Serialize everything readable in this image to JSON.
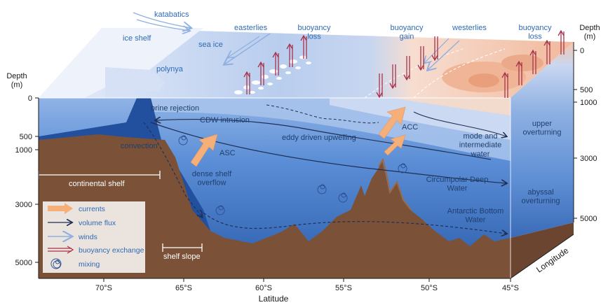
{
  "atmosphere": {
    "katabatics": "katabatics",
    "ice_shelf": "ice shelf",
    "sea_ice": "sea ice",
    "easterlies": "easterlies",
    "buoyancy_loss_1": "buoyancy\nloss",
    "buoyancy_gain": "buoyancy\ngain",
    "westerlies": "westerlies",
    "buoyancy_loss_2": "buoyancy\nloss"
  },
  "ocean": {
    "polynya": "polynya",
    "brine_rejection": "brine rejection",
    "cdw_intrusion": "CDW intrusion",
    "convection": "convection",
    "asc": "ASC",
    "eddy_upwelling": "eddy driven upwelling",
    "acc": "ACC",
    "dense_shelf_overflow": "dense shelf\noverflow",
    "continental_shelf": "continental shelf",
    "shelf_slope": "shelf slope",
    "cdw": "Circumpolar Deep\nWater",
    "aabw": "Antarctic Bottom\nWater",
    "mode_water": "mode and\nintermediate\nwater",
    "upper_overturning": "upper\noverturning",
    "abyssal_overturning": "abyssal\noverturning"
  },
  "axes": {
    "left_title": "Depth\n(m)",
    "left_ticks": [
      "0",
      "500",
      "1000",
      "3000",
      "5000"
    ],
    "right_title": "Depth\n(m)",
    "right_top_ticks": [
      "0",
      "500",
      "1000"
    ],
    "right_ticks": [
      "3000",
      "5000"
    ],
    "x_title": "Latitude",
    "x_ticks": [
      "70°S",
      "65°S",
      "60°S",
      "55°S",
      "50°S",
      "45°S"
    ],
    "longitude": "Longitude"
  },
  "legend": {
    "items": [
      {
        "label": "currents",
        "icon": "thick-orange-arrow"
      },
      {
        "label": "volume flux",
        "icon": "thin-dark-arrow"
      },
      {
        "label": "winds",
        "icon": "light-blue-arrow"
      },
      {
        "label": "buoyancy exchange",
        "icon": "red-double-arrow"
      },
      {
        "label": "mixing",
        "icon": "spiral"
      }
    ]
  },
  "colors": {
    "deep_blue": "#2a5cab",
    "mid_blue": "#5b8ed6",
    "light_blue": "#a9c4ec",
    "seafloor": "#7b5238",
    "buoyancy": "#a8324a",
    "current": "#f5b07a",
    "warm": "#f4cdb4"
  }
}
